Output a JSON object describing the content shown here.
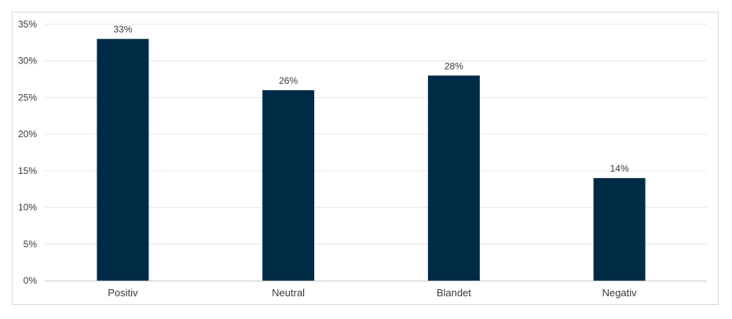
{
  "chart_data": {
    "type": "bar",
    "categories": [
      "Positiv",
      "Neutral",
      "Blandet",
      "Negativ"
    ],
    "values": [
      33,
      26,
      28,
      14
    ],
    "data_labels": [
      "33%",
      "26%",
      "28%",
      "14%"
    ],
    "y_ticks": [
      "0%",
      "5%",
      "10%",
      "15%",
      "20%",
      "25%",
      "30%",
      "35%"
    ],
    "ylim": [
      0,
      35
    ],
    "title": "",
    "xlabel": "",
    "ylabel": "",
    "grid": true,
    "legend": "none",
    "bar_color": "#002b47",
    "grid_color": "#e6e6e6",
    "axis_color": "#c8c8c8"
  }
}
